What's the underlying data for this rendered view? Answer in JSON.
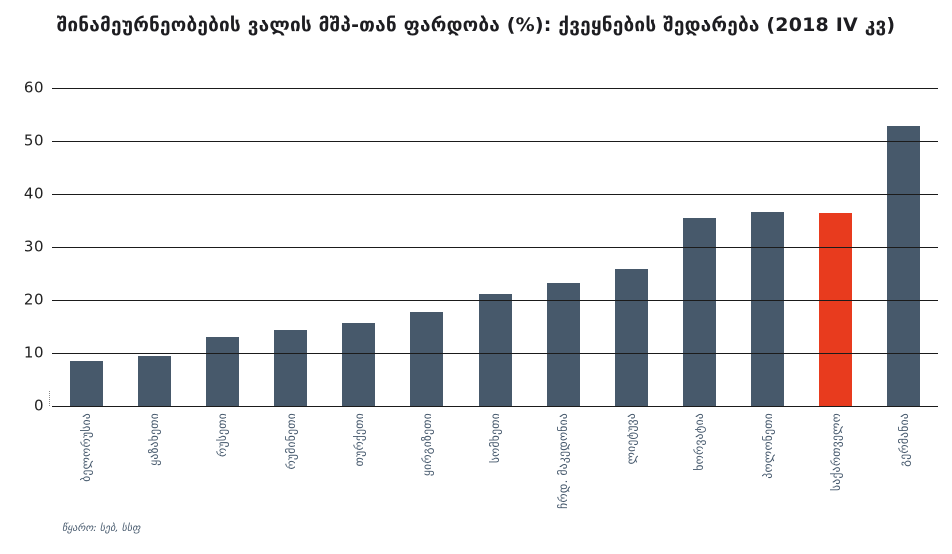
{
  "title": "შინამეურნეობების ვალის მშპ-თან ფარდობა (%): ქვეყნების შედარება (2018 IV კვ)",
  "source_note": "წყარო: სებ, სსფ",
  "colors": {
    "bar": "#47596B",
    "highlight": "#E83B1E",
    "gridline": "#1b1b1b",
    "title": "#1d1d21",
    "y_tick": "#222222",
    "x_label": "#44576B",
    "source": "#44576B"
  },
  "chart_data": {
    "type": "bar",
    "title": "შინამეურნეობების ვალის მშპ-თან ფარდობა (%): ქვეყნების შედარება (2018 IV კვ)",
    "categories": [
      "ბელორუსია",
      "ყაზახეთი",
      "რუსეთი",
      "რუმინეთი",
      "თურქეთი",
      "ყირგიზეთი",
      "სომხეთი",
      "ჩრდ. მაკედონია",
      "ლიეტუვა",
      "ხორვატია",
      "პოლონეთი",
      "საქართველო",
      "გერმანია"
    ],
    "values": [
      8.4,
      9.5,
      13.0,
      14.4,
      15.6,
      17.8,
      21.2,
      23.3,
      25.8,
      35.4,
      36.6,
      36.5,
      52.8
    ],
    "highlight_category": "საქართველო",
    "highlight_index": 11,
    "xlabel": "",
    "ylabel": "",
    "ylim": [
      0,
      60
    ],
    "yticks": [
      60,
      50,
      40,
      30,
      20,
      10,
      0
    ],
    "grid": true,
    "legend_position": "none",
    "x_label_rotation_deg": 90
  }
}
